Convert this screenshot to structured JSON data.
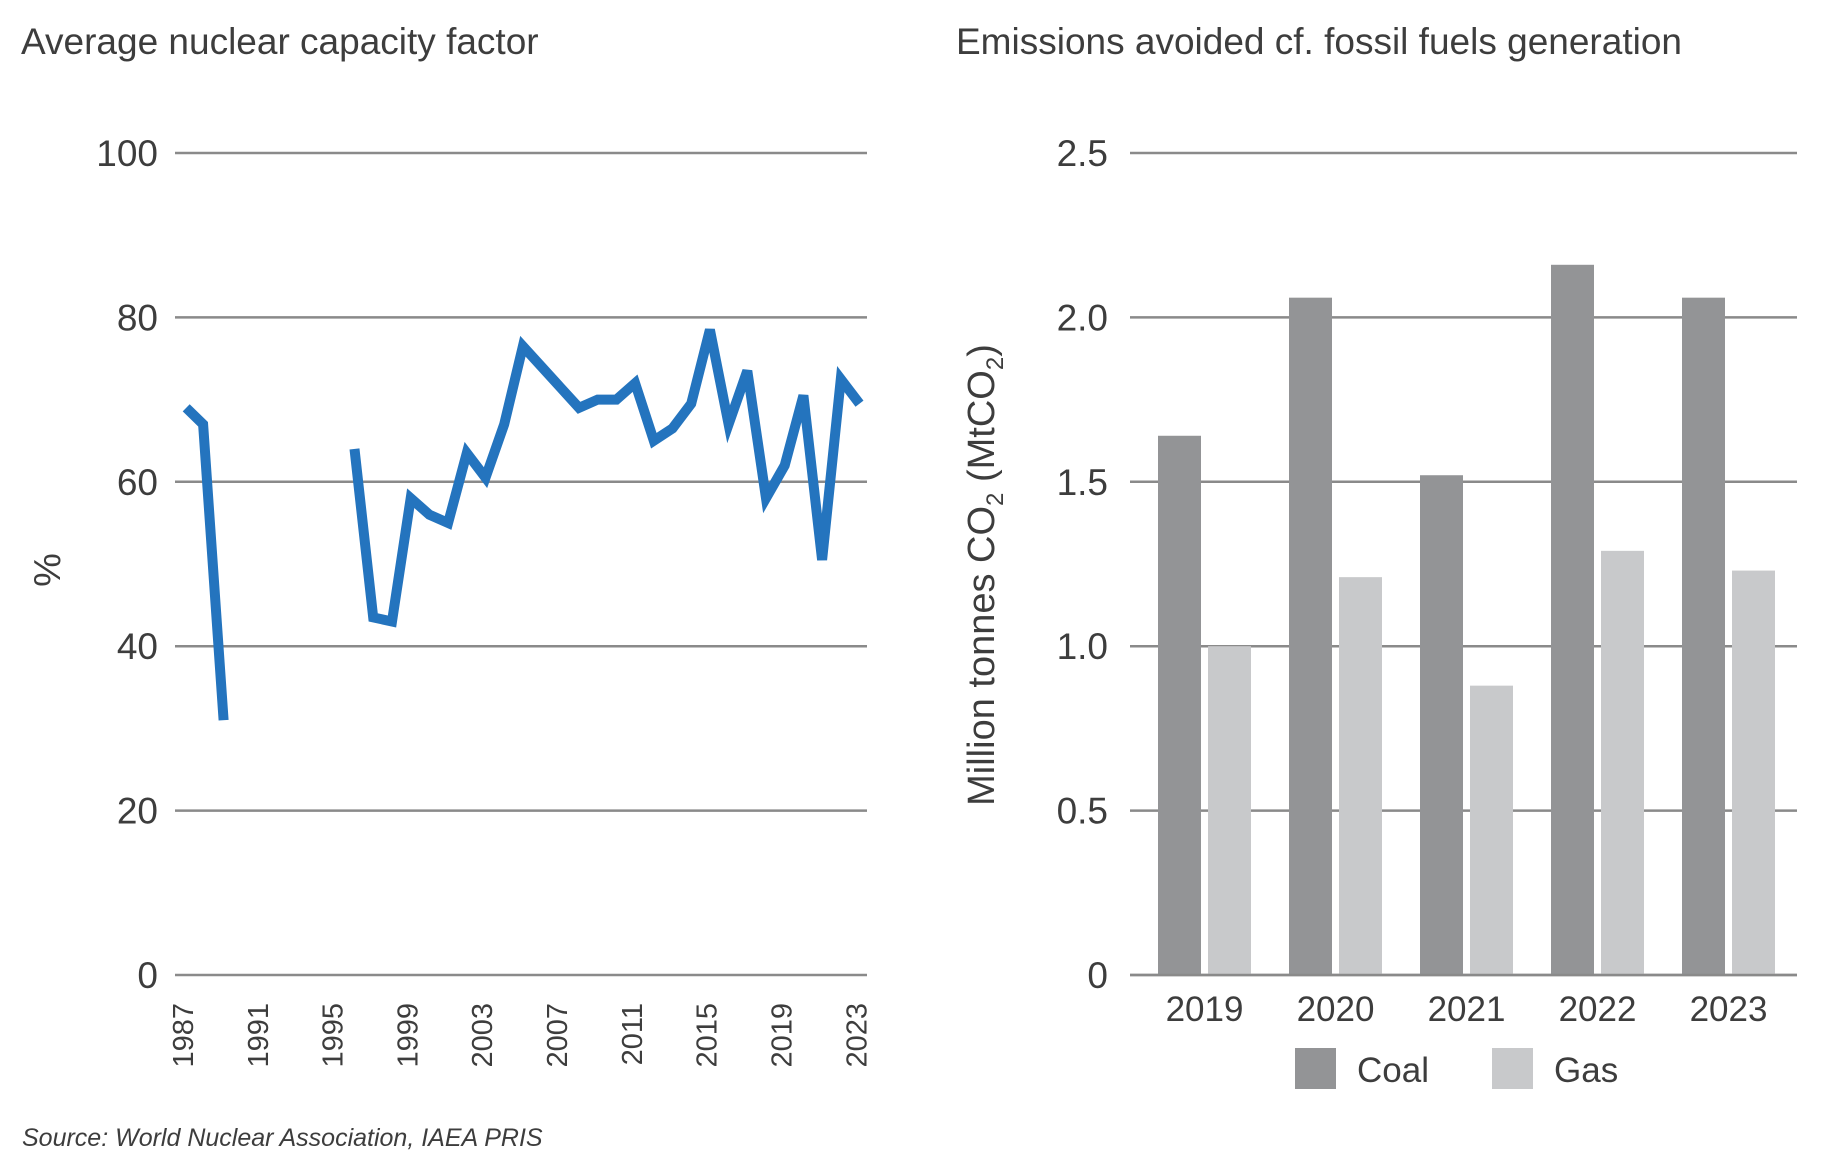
{
  "chart_data": [
    {
      "type": "line",
      "title": "Average nuclear capacity factor",
      "ylabel": "%",
      "xlabel": "",
      "ylim": [
        0,
        100
      ],
      "yticks": [
        "0",
        "20",
        "40",
        "60",
        "80",
        "100"
      ],
      "xticks": [
        "1987",
        "1991",
        "1995",
        "1999",
        "2003",
        "2007",
        "2011",
        "2015",
        "2019",
        "2023"
      ],
      "xlim": [
        1987,
        2024
      ],
      "grid": true,
      "color": "#2474be",
      "series": [
        {
          "segments": [
            [
              [
                1987.6,
                69
              ],
              [
                1988.5,
                67
              ],
              [
                1989.6,
                31
              ]
            ],
            [
              [
                1996.6,
                64
              ],
              [
                1997.6,
                43.5
              ],
              [
                1998.6,
                43
              ],
              [
                1999.6,
                58
              ],
              [
                2000.6,
                56
              ],
              [
                2001.6,
                55
              ],
              [
                2002.6,
                63.5
              ],
              [
                2003.6,
                60.5
              ],
              [
                2004.6,
                67
              ],
              [
                2005.6,
                76.5
              ],
              [
                2006.6,
                74
              ],
              [
                2007.6,
                71.5
              ],
              [
                2008.6,
                69
              ],
              [
                2009.6,
                70
              ],
              [
                2010.6,
                70
              ],
              [
                2011.6,
                72
              ],
              [
                2012.6,
                65
              ],
              [
                2013.6,
                66.5
              ],
              [
                2014.6,
                69.5
              ],
              [
                2015.6,
                78.5
              ],
              [
                2016.6,
                67
              ],
              [
                2017.6,
                73.5
              ],
              [
                2018.6,
                58
              ],
              [
                2019.6,
                62
              ],
              [
                2020.6,
                70.5
              ],
              [
                2021.6,
                50.5
              ],
              [
                2022.6,
                72.5
              ],
              [
                2023.6,
                69.5
              ]
            ]
          ]
        }
      ]
    },
    {
      "type": "bar",
      "title": "Emissions avoided cf. fossil fuels generation",
      "ylabel": "Million tonnes CO2 (MtCO2)",
      "xlabel": "",
      "ylim": [
        0,
        2.5
      ],
      "yticks": [
        "0",
        "0.5",
        "1.0",
        "1.5",
        "2.0",
        "2.5"
      ],
      "categories": [
        "2019",
        "2020",
        "2021",
        "2022",
        "2023"
      ],
      "grid": true,
      "legend_position": "bottom",
      "series": [
        {
          "name": "Coal",
          "color": "#939496",
          "values": [
            1.64,
            2.06,
            1.52,
            2.16,
            2.06
          ]
        },
        {
          "name": "Gas",
          "color": "#c8c9cb",
          "values": [
            1.0,
            1.21,
            0.88,
            1.29,
            1.23
          ]
        }
      ]
    }
  ],
  "source": "Source: World Nuclear Association, IAEA PRIS",
  "ylabel_parts": {
    "pre": "Million tonnes CO",
    "sub": "2",
    "mid": " (MtCO",
    "sub2": "2",
    "post": ")"
  }
}
